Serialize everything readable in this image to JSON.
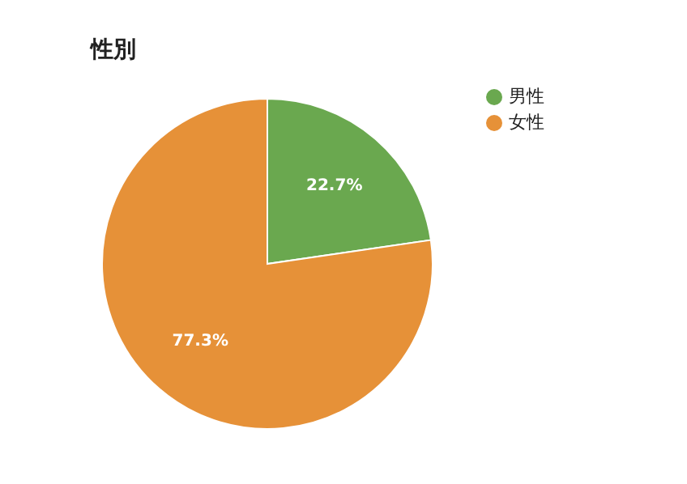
{
  "chart_data": {
    "type": "pie",
    "title": "性別",
    "categories": [
      "男性",
      "女性"
    ],
    "values": [
      22.7,
      77.3
    ],
    "colors": [
      "#6aa84f",
      "#e69138"
    ],
    "value_labels": [
      "22.7%",
      "77.3%"
    ],
    "legend": "top right"
  }
}
